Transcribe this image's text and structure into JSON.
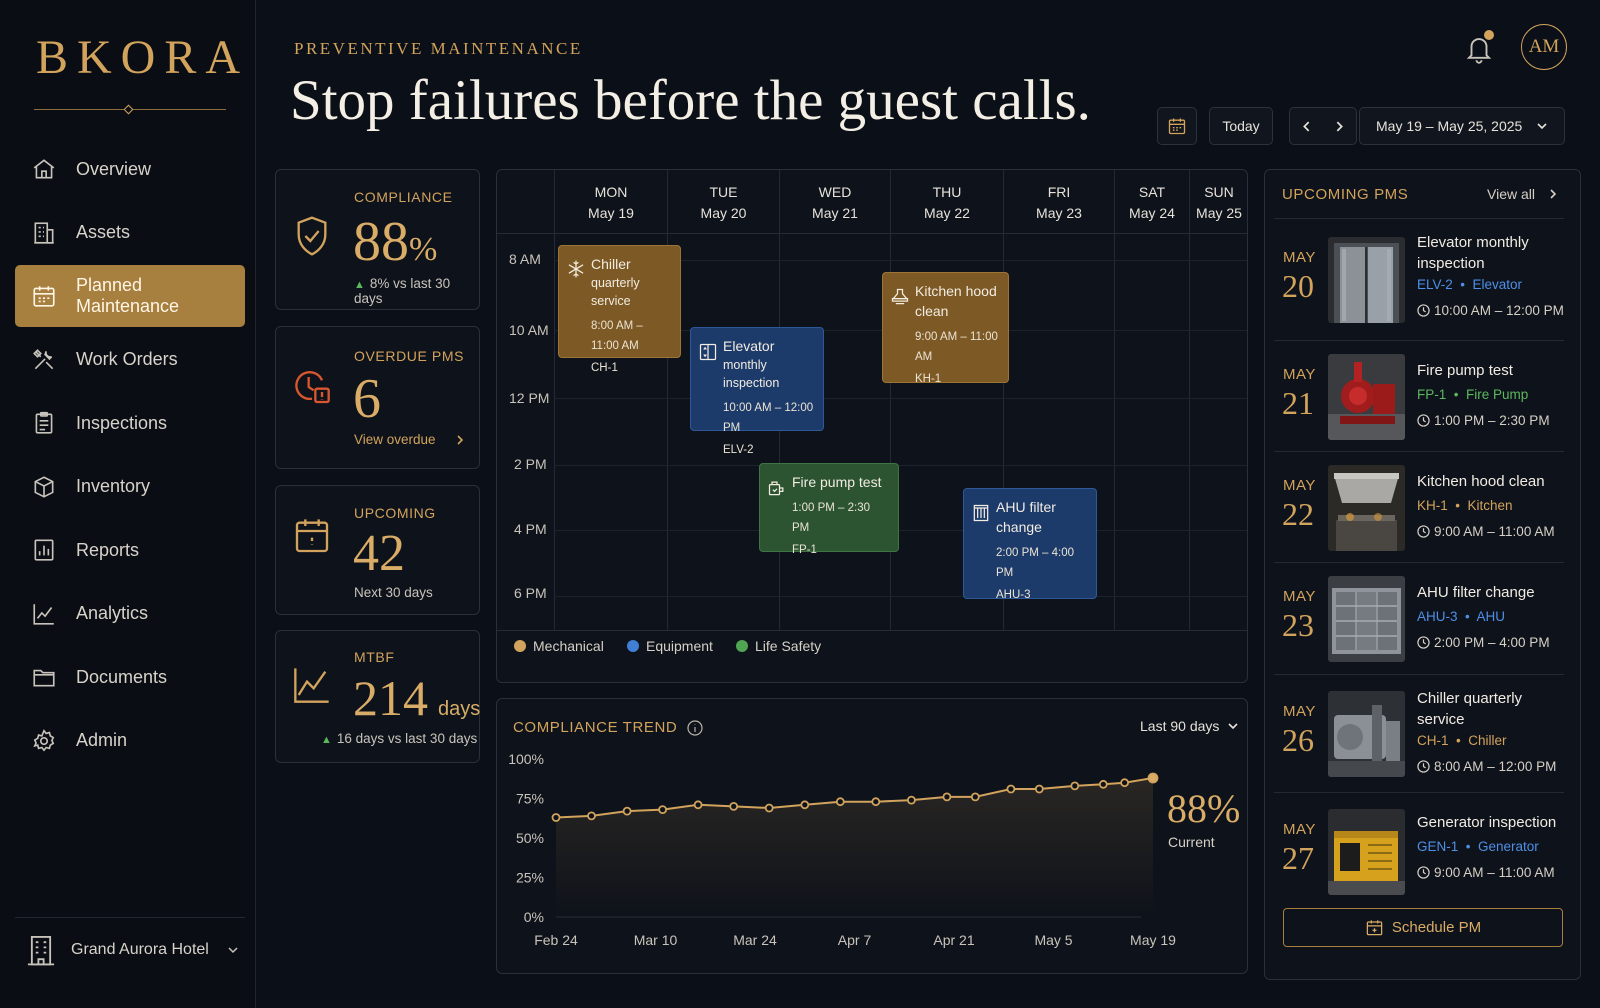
{
  "brand": {
    "name": "BKORA",
    "accent": "#d2a35c"
  },
  "sidebar": {
    "items": [
      {
        "label": "Overview",
        "icon": "home-icon"
      },
      {
        "label": "Assets",
        "icon": "building-icon"
      },
      {
        "label": "Planned Maintenance",
        "icon": "calendar-icon",
        "active": true
      },
      {
        "label": "Work Orders",
        "icon": "tools-icon"
      },
      {
        "label": "Inspections",
        "icon": "clipboard-icon"
      },
      {
        "label": "Inventory",
        "icon": "box-icon"
      },
      {
        "label": "Reports",
        "icon": "bar-chart-icon"
      },
      {
        "label": "Analytics",
        "icon": "line-chart-icon"
      },
      {
        "label": "Documents",
        "icon": "folder-icon"
      },
      {
        "label": "Admin",
        "icon": "gear-icon"
      }
    ],
    "hotel": "Grand Aurora Hotel"
  },
  "header": {
    "eyebrow": "PREVENTIVE MAINTENANCE",
    "title": "Stop failures before the guest calls.",
    "avatar": "AM",
    "today": "Today",
    "date_range": "May 19 – May 25, 2025"
  },
  "kpis": {
    "compliance": {
      "label": "COMPLIANCE",
      "value": "88",
      "unit": "%",
      "delta": "8% vs last 30 days"
    },
    "overdue": {
      "label": "OVERDUE PMS",
      "value": "6",
      "link": "View overdue"
    },
    "upcoming": {
      "label": "UPCOMING",
      "value": "42",
      "sub": "Next 30 days"
    },
    "mtbf": {
      "label": "MTBF",
      "value": "214",
      "unit": "days",
      "delta": "16 days vs last 30 days"
    }
  },
  "calendar": {
    "days": [
      {
        "dow": "MON",
        "date": "May 19"
      },
      {
        "dow": "TUE",
        "date": "May 20"
      },
      {
        "dow": "WED",
        "date": "May 21"
      },
      {
        "dow": "THU",
        "date": "May 22"
      },
      {
        "dow": "FRI",
        "date": "May 23"
      },
      {
        "dow": "SAT",
        "date": "May 24"
      },
      {
        "dow": "SUN",
        "date": "May 25"
      }
    ],
    "times": [
      "8 AM",
      "10 AM",
      "12 PM",
      "2 PM",
      "4 PM",
      "6 PM"
    ],
    "events": [
      {
        "title": "Chiller",
        "subtitle": "quarterly service",
        "time": "8:00 AM – 11:00 AM",
        "code": "CH-1",
        "category": "mechanical",
        "icon": "snowflake-icon"
      },
      {
        "title": "Elevator",
        "subtitle": "monthly inspection",
        "time": "10:00 AM – 12:00 PM",
        "code": "ELV-2",
        "category": "equipment",
        "icon": "elevator-icon"
      },
      {
        "title": "Kitchen hood",
        "subtitle": "clean",
        "time": "9:00 AM – 11:00 AM",
        "code": "KH-1",
        "category": "mechanical",
        "icon": "hood-icon"
      },
      {
        "title": "Fire pump test",
        "subtitle": "",
        "time": "1:00 PM – 2:30 PM",
        "code": "FP-1",
        "category": "life",
        "icon": "pump-icon"
      },
      {
        "title": "AHU filter",
        "subtitle": "change",
        "time": "2:00 PM – 4:00 PM",
        "code": "AHU-3",
        "category": "equipment",
        "icon": "filter-icon"
      }
    ],
    "legend": [
      {
        "label": "Mechanical",
        "color": "#d2a35c"
      },
      {
        "label": "Equipment",
        "color": "#3f7fd6"
      },
      {
        "label": "Life Safety",
        "color": "#4fa552"
      }
    ]
  },
  "trend": {
    "title": "COMPLIANCE TREND",
    "range": "Last 90 days",
    "current_value": "88%",
    "current_label": "Current"
  },
  "chart_data": {
    "type": "line",
    "title": "COMPLIANCE TREND",
    "x_ticks": [
      "Feb 24",
      "Mar 10",
      "Mar 24",
      "Apr 7",
      "Apr 21",
      "May 5",
      "May 19"
    ],
    "y_ticks": [
      "100%",
      "75%",
      "50%",
      "25%",
      "0%"
    ],
    "ylim": [
      0,
      100
    ],
    "xlim": [
      "Feb 24",
      "May 19"
    ],
    "grid": false,
    "series": [
      {
        "x": [
          "Feb 24",
          "Mar 1",
          "Mar 6",
          "Mar 11",
          "Mar 16",
          "Mar 21",
          "Mar 26",
          "Mar 31",
          "Apr 5",
          "Apr 10",
          "Apr 15",
          "Apr 20",
          "Apr 24",
          "Apr 29",
          "May 3",
          "May 8",
          "May 12",
          "May 15",
          "May 19"
        ],
        "y": [
          63,
          64,
          67,
          68,
          71,
          70,
          69,
          71,
          73,
          73,
          74,
          76,
          76,
          81,
          81,
          83,
          84,
          85,
          88
        ]
      }
    ]
  },
  "upcoming": {
    "title": "UPCOMING PMS",
    "view_all": "View all",
    "items": [
      {
        "month": "MAY",
        "day": "20",
        "title": "Elevator monthly inspection",
        "code": "ELV-2",
        "type": "Elevator",
        "time": "10:00 AM – 12:00 PM",
        "color": "#4f8fe6",
        "img": "elevator"
      },
      {
        "month": "MAY",
        "day": "21",
        "title": "Fire pump test",
        "code": "FP-1",
        "type": "Fire Pump",
        "time": "1:00 PM – 2:30 PM",
        "color": "#5cb85f",
        "img": "pump"
      },
      {
        "month": "MAY",
        "day": "22",
        "title": "Kitchen hood clean",
        "code": "KH-1",
        "type": "Kitchen",
        "time": "9:00 AM – 11:00 AM",
        "color": "#d2a35c",
        "img": "kitchen"
      },
      {
        "month": "MAY",
        "day": "23",
        "title": "AHU filter change",
        "code": "AHU-3",
        "type": "AHU",
        "time": "2:00 PM – 4:00 PM",
        "color": "#4f8fe6",
        "img": "ahu"
      },
      {
        "month": "MAY",
        "day": "26",
        "title": "Chiller quarterly service",
        "code": "CH-1",
        "type": "Chiller",
        "time": "8:00 AM – 12:00 PM",
        "color": "#d2a35c",
        "img": "chiller"
      },
      {
        "month": "MAY",
        "day": "27",
        "title": "Generator inspection",
        "code": "GEN-1",
        "type": "Generator",
        "time": "9:00 AM – 11:00 AM",
        "color": "#4f8fe6",
        "img": "generator"
      }
    ],
    "schedule_label": "Schedule PM"
  }
}
